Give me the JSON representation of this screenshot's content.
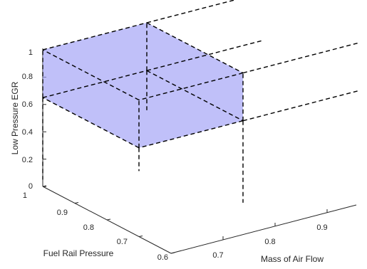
{
  "chart_data": {
    "type": "3d-box",
    "zlabel": "Low Pressure EGR",
    "ylabel": "Fuel Rail Pressure",
    "xlabel": "Mass of Air Flow",
    "z_ticks": [
      "0",
      "0.2",
      "0.4",
      "0.6",
      "0.8",
      "1"
    ],
    "y_ticks": [
      "0.6",
      "0.7",
      "0.8",
      "0.9",
      "1"
    ],
    "x_ticks": [
      "0.7",
      "0.8",
      "0.9"
    ],
    "box": {
      "mass_of_air_flow": [
        0.6,
        0.8
      ],
      "fuel_rail_pressure": [
        0.7,
        1.0
      ],
      "low_pressure_egr": [
        0.65,
        1.0
      ]
    },
    "box_color": "#9f9ff6",
    "edge_color": "#000000",
    "edge_style": "dashed"
  }
}
